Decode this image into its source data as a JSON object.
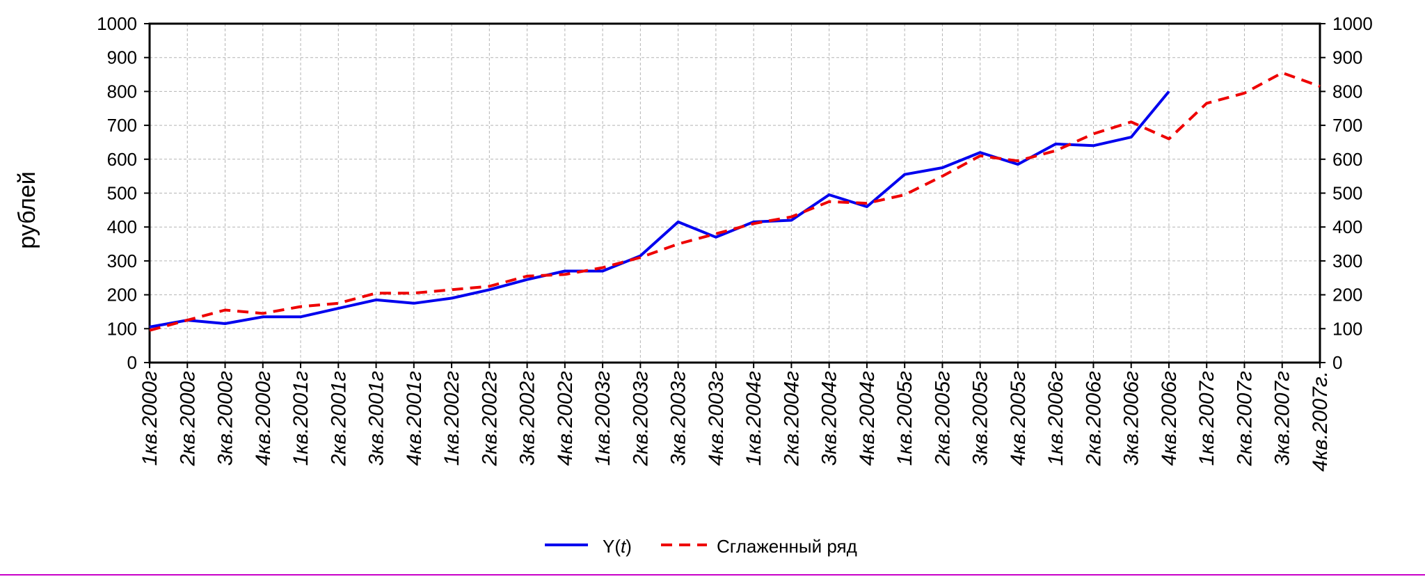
{
  "chart_data": {
    "type": "line",
    "ylabel": "рублей",
    "ylim": [
      0,
      1000
    ],
    "yticks": [
      0,
      100,
      200,
      300,
      400,
      500,
      600,
      700,
      800,
      900,
      1000
    ],
    "grid": true,
    "right_axis": true,
    "categories": [
      "1кв.2000г",
      "2кв.2000г",
      "3кв.2000г",
      "4кв.2000г",
      "1кв.2001г",
      "2кв.2001г",
      "3кв.2001г",
      "4кв.2001г",
      "1кв.2002г",
      "2кв.2002г",
      "3кв.2002г",
      "4кв.2002г",
      "1кв.2003г",
      "2кв.2003г",
      "3кв.2003г",
      "4кв.2003г",
      "1кв.2004г",
      "2кв.2004г",
      "3кв.2004г",
      "4кв.2004г",
      "1кв.2005г",
      "2кв.2005г",
      "3кв.2005г",
      "4кв.2005г",
      "1кв.2006г",
      "2кв.2006г",
      "3кв.2006г",
      "4кв.2006г",
      "1кв.2007г",
      "2кв.2007г",
      "3кв.2007г",
      "4кв.2007г."
    ],
    "series": [
      {
        "name": "Y(t)",
        "name_main": "Y",
        "name_arg": "t",
        "color": "#0000ee",
        "dash": "solid",
        "values": [
          105,
          125,
          115,
          135,
          135,
          160,
          185,
          175,
          190,
          215,
          245,
          270,
          270,
          315,
          415,
          370,
          415,
          420,
          495,
          460,
          555,
          575,
          620,
          585,
          645,
          640,
          665,
          800,
          null,
          null,
          null,
          null
        ]
      },
      {
        "name": "Сглаженный ряд",
        "color": "#ee0000",
        "dash": "dashed",
        "values": [
          95,
          125,
          155,
          145,
          165,
          175,
          205,
          205,
          215,
          225,
          255,
          260,
          280,
          310,
          350,
          380,
          410,
          430,
          475,
          470,
          495,
          550,
          610,
          595,
          625,
          675,
          710,
          660,
          765,
          795,
          855,
          815
        ]
      }
    ],
    "legend_position": "bottom-center"
  }
}
